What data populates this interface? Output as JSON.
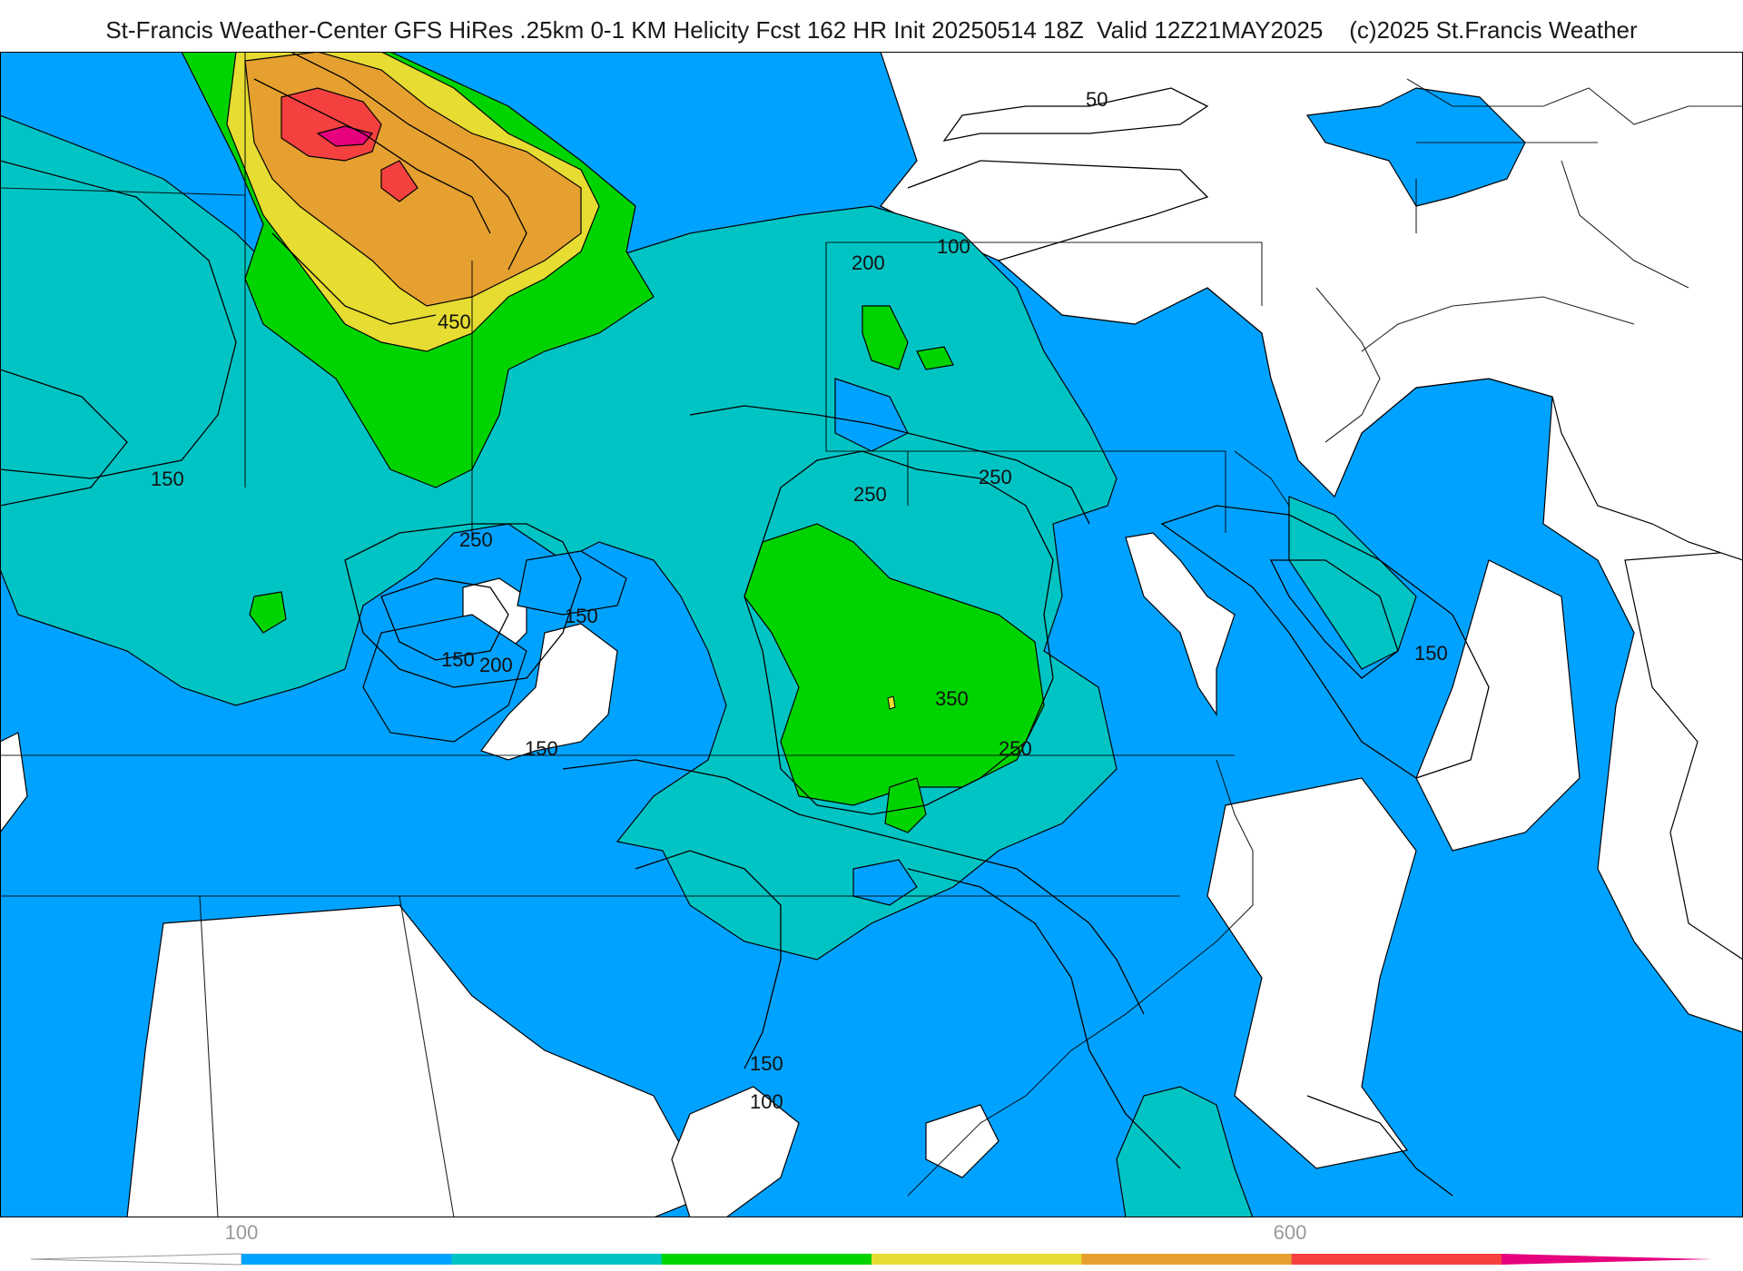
{
  "header": {
    "title": "St-Francis Weather-Center GFS HiRes .25km 0-1 KM Helicity Fcst 162 HR Init 20250514 18Z  Valid 12Z21MAY2025    (c)2025 St.Francis Weather"
  },
  "contour_labels": [
    "50",
    "100",
    "200",
    "450",
    "150",
    "250",
    "250",
    "250",
    "150",
    "150",
    "200",
    "150",
    "350",
    "250",
    "150",
    "150",
    "100"
  ],
  "colorbar": {
    "tick_labels": [
      "100",
      "600"
    ],
    "colors": [
      "#00a2ff",
      "#00c4c4",
      "#00d400",
      "#e6dc32",
      "#e6a030",
      "#f54040",
      "#e6007e"
    ]
  },
  "fill_colors": {
    "band_100_150": "#00a2ff",
    "band_150_250": "#00c4c4",
    "band_250_350": "#00d400",
    "band_350_450": "#e6dc32",
    "band_450_500": "#e6a030",
    "band_500_600": "#f54040",
    "band_600_plus": "#e6007e",
    "below_100": "#ffffff"
  }
}
